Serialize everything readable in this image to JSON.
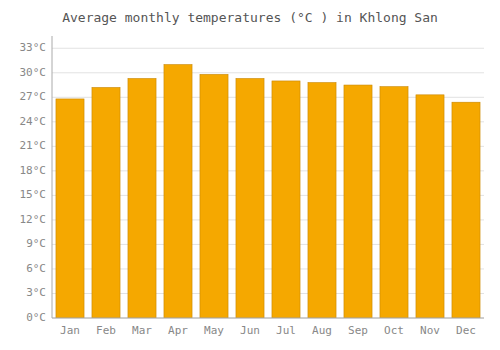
{
  "chart_data": {
    "type": "bar",
    "title": "Average monthly temperatures (°C ) in Khlong San",
    "categories": [
      "Jan",
      "Feb",
      "Mar",
      "Apr",
      "May",
      "Jun",
      "Jul",
      "Aug",
      "Sep",
      "Oct",
      "Nov",
      "Dec"
    ],
    "values": [
      26.8,
      28.2,
      29.3,
      31.0,
      29.8,
      29.3,
      29.0,
      28.8,
      28.5,
      28.3,
      27.3,
      26.4
    ],
    "color": "#F5A800",
    "ylim": [
      0,
      34.5
    ],
    "yticks": [
      {
        "value": 0,
        "label": "0°C"
      },
      {
        "value": 3,
        "label": "3°C"
      },
      {
        "value": 6,
        "label": "6°C"
      },
      {
        "value": 9,
        "label": "9°C"
      },
      {
        "value": 12,
        "label": "12°C"
      },
      {
        "value": 15,
        "label": "15°C"
      },
      {
        "value": 18,
        "label": "18°C"
      },
      {
        "value": 21,
        "label": "21°C"
      },
      {
        "value": 24,
        "label": "24°C"
      },
      {
        "value": 27,
        "label": "27°C"
      },
      {
        "value": 30,
        "label": "30°C"
      },
      {
        "value": 33,
        "label": "33°C"
      }
    ],
    "grid": true
  }
}
